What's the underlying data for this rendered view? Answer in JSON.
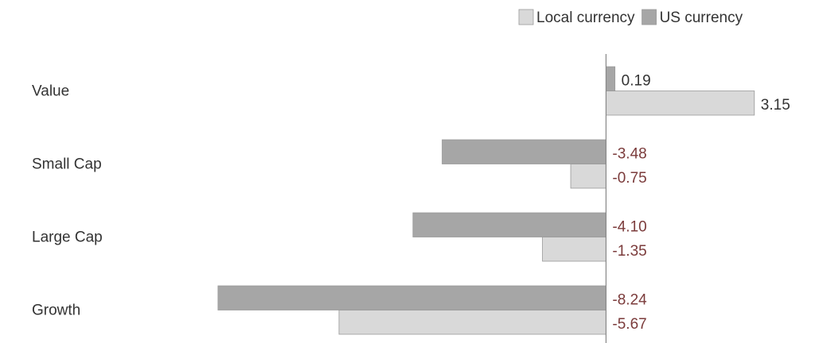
{
  "chart_data": {
    "type": "bar",
    "orientation": "horizontal",
    "categories": [
      "Value",
      "Small Cap",
      "Large Cap",
      "Growth"
    ],
    "series": [
      {
        "name": "Local currency",
        "color": "#d9d9d9",
        "values": [
          3.15,
          -0.75,
          -1.35,
          -5.67
        ],
        "value_labels": [
          "3.15",
          "-0.75",
          "-1.35",
          "-5.67"
        ]
      },
      {
        "name": "US currency",
        "color": "#a6a6a6",
        "values": [
          0.19,
          -3.48,
          -4.1,
          -8.24
        ],
        "value_labels": [
          "0.19",
          "-3.48",
          "-4.10",
          "-8.24"
        ]
      }
    ],
    "xlim": [
      -8.5,
      3.5
    ],
    "legend": "top-right"
  }
}
